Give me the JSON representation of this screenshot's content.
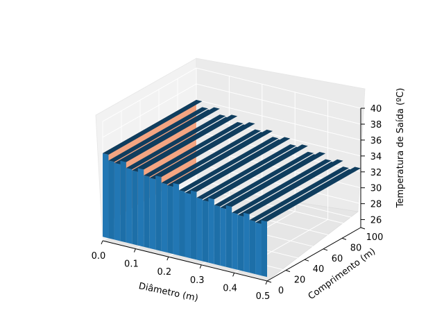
{
  "chart_data": {
    "type": "surface3d",
    "axes": {
      "x": {
        "label": "Diâmetro (m)",
        "ticks": [
          0.0,
          0.1,
          0.2,
          0.3,
          0.4,
          0.5
        ],
        "tick_labels": [
          "0.0",
          "0.1",
          "0.2",
          "0.3",
          "0.4",
          "0.5"
        ],
        "lim": [
          0.0,
          0.5
        ]
      },
      "y": {
        "label": "Comprimento (m)",
        "ticks": [
          0,
          20,
          40,
          60,
          80,
          100
        ],
        "tick_labels": [
          "0",
          "20",
          "40",
          "60",
          "80",
          "100"
        ],
        "lim": [
          0,
          100
        ]
      },
      "z": {
        "label": "Temperatura de Saída (ºC)",
        "ticks": [
          26,
          28,
          30,
          32,
          34,
          36,
          38,
          40
        ],
        "tick_labels": [
          "26",
          "28",
          "30",
          "32",
          "34",
          "36",
          "38",
          "40"
        ],
        "lim": [
          25,
          40
        ]
      }
    },
    "grid": true,
    "series": [
      {
        "color": "#f4a582",
        "description_values": {
          "x": 0.0,
          "y_range": [
            0,
            100
          ],
          "z_range": [
            27,
            36
          ]
        }
      },
      {
        "color": "#1f77b4",
        "x_range": [
          0.0,
          0.5
        ],
        "y_range": [
          0,
          100
        ],
        "z_range": [
          25.5,
          36
        ]
      }
    ]
  }
}
